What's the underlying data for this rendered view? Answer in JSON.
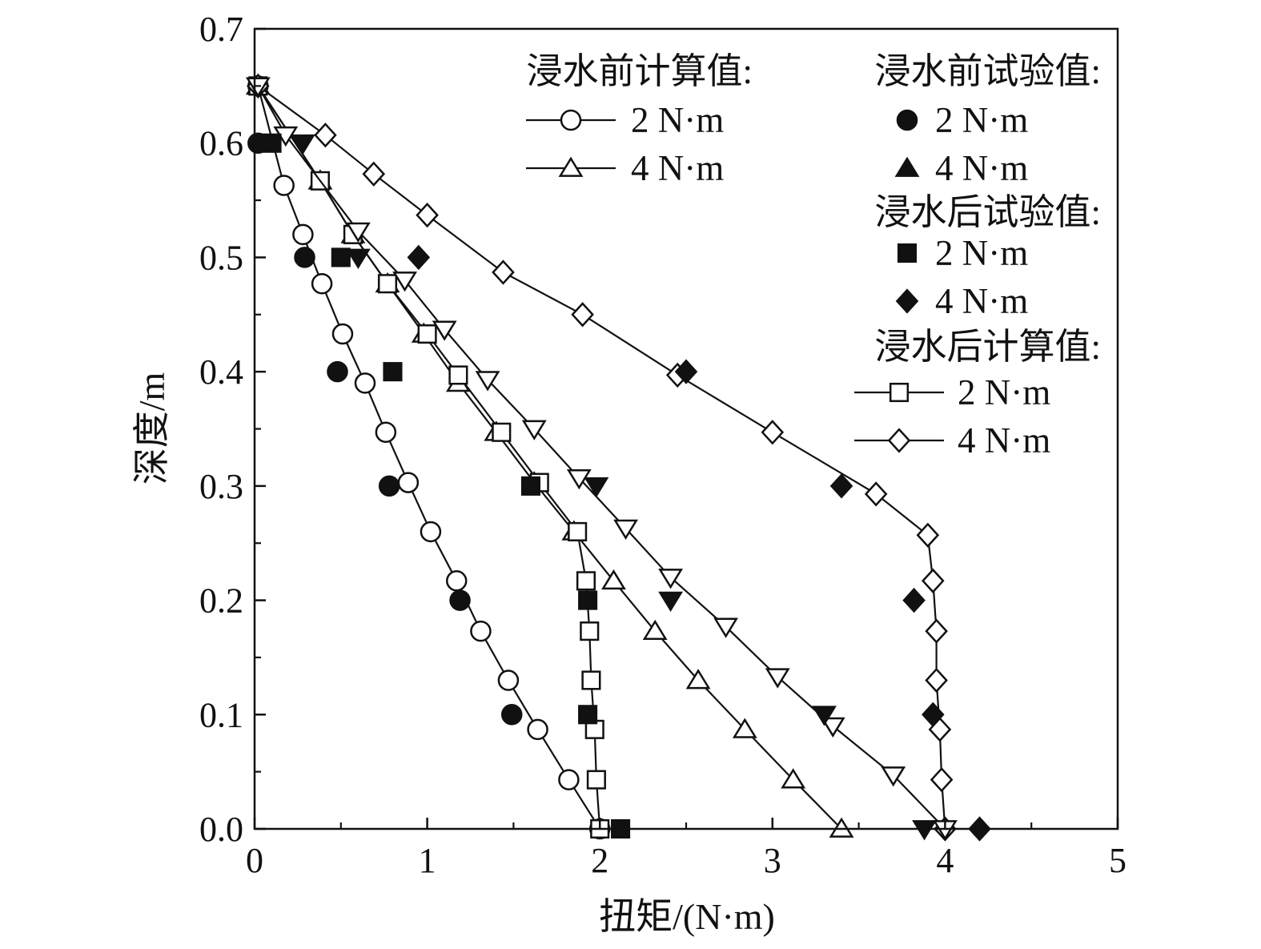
{
  "chart_data": {
    "type": "line",
    "xlabel": "扭矩/(N·m)",
    "ylabel": "深度/m",
    "xlim": [
      0,
      5
    ],
    "ylim": [
      0,
      0.7
    ],
    "xticks": [
      "0",
      "1",
      "2",
      "3",
      "4",
      "5"
    ],
    "yticks": [
      "0.0",
      "0.1",
      "0.2",
      "0.3",
      "0.4",
      "0.5",
      "0.6",
      "0.7"
    ],
    "grid": false,
    "legend_position": "top-right",
    "legend": {
      "groups": [
        {
          "title": "浸水前计算值:",
          "entries": [
            {
              "label": "2 N·m",
              "series": "before_calc_2"
            },
            {
              "label": "4 N·m",
              "series": "before_calc_4"
            }
          ]
        },
        {
          "title": "浸水前试验值:",
          "entries": [
            {
              "label": "2 N·m",
              "series": "before_test_2"
            },
            {
              "label": "4 N·m",
              "series": "before_test_4"
            }
          ]
        },
        {
          "title": "浸水后试验值:",
          "entries": [
            {
              "label": "2 N·m",
              "series": "after_test_2"
            },
            {
              "label": "4 N·m",
              "series": "after_test_4"
            }
          ]
        },
        {
          "title": "浸水后计算值:",
          "entries": [
            {
              "label": "2 N·m",
              "series": "after_calc_2"
            },
            {
              "label": "4 N·m",
              "series": "after_calc_4"
            }
          ]
        }
      ]
    },
    "series": [
      {
        "id": "before_calc_2",
        "marker": "circle-open",
        "line": true,
        "points": [
          [
            0.02,
            0.65
          ],
          [
            0.17,
            0.563
          ],
          [
            0.28,
            0.52
          ],
          [
            0.39,
            0.477
          ],
          [
            0.51,
            0.433
          ],
          [
            0.64,
            0.39
          ],
          [
            0.76,
            0.347
          ],
          [
            0.89,
            0.303
          ],
          [
            1.02,
            0.26
          ],
          [
            1.17,
            0.217
          ],
          [
            1.31,
            0.173
          ],
          [
            1.47,
            0.13
          ],
          [
            1.64,
            0.087
          ],
          [
            1.82,
            0.043
          ],
          [
            2.0,
            0.0
          ]
        ]
      },
      {
        "id": "before_calc_4",
        "marker": "triangle-open",
        "line": true,
        "points": [
          [
            0.02,
            0.65
          ],
          [
            0.38,
            0.567
          ],
          [
            0.57,
            0.52
          ],
          [
            0.77,
            0.477
          ],
          [
            0.98,
            0.433
          ],
          [
            1.18,
            0.39
          ],
          [
            1.4,
            0.347
          ],
          [
            1.62,
            0.303
          ],
          [
            1.85,
            0.26
          ],
          [
            2.08,
            0.217
          ],
          [
            2.32,
            0.173
          ],
          [
            2.57,
            0.13
          ],
          [
            2.84,
            0.087
          ],
          [
            3.12,
            0.043
          ],
          [
            3.4,
            0.0
          ]
        ]
      },
      {
        "id": "after_calc_2",
        "marker": "square-open",
        "line": true,
        "points": [
          [
            0.02,
            0.65
          ],
          [
            0.38,
            0.567
          ],
          [
            0.57,
            0.52
          ],
          [
            0.77,
            0.477
          ],
          [
            1.0,
            0.433
          ],
          [
            1.18,
            0.397
          ],
          [
            1.43,
            0.347
          ],
          [
            1.65,
            0.303
          ],
          [
            1.87,
            0.26
          ],
          [
            1.92,
            0.217
          ],
          [
            1.94,
            0.173
          ],
          [
            1.95,
            0.13
          ],
          [
            1.97,
            0.087
          ],
          [
            1.98,
            0.043
          ],
          [
            2.0,
            0.0
          ]
        ]
      },
      {
        "id": "after_calc_4",
        "marker": "diamond-open",
        "line": true,
        "points": [
          [
            0.02,
            0.65
          ],
          [
            0.41,
            0.607
          ],
          [
            0.69,
            0.573
          ],
          [
            1.0,
            0.537
          ],
          [
            1.44,
            0.487
          ],
          [
            1.9,
            0.45
          ],
          [
            2.45,
            0.397
          ],
          [
            3.0,
            0.347
          ],
          [
            3.6,
            0.293
          ],
          [
            3.9,
            0.257
          ],
          [
            3.93,
            0.217
          ],
          [
            3.95,
            0.173
          ],
          [
            3.95,
            0.13
          ],
          [
            3.97,
            0.087
          ],
          [
            3.98,
            0.043
          ],
          [
            4.0,
            0.0
          ]
        ]
      },
      {
        "id": "after_calc_4b",
        "marker": "triangle-down-open",
        "line": true,
        "points": [
          [
            0.02,
            0.65
          ],
          [
            0.18,
            0.607
          ],
          [
            0.6,
            0.523
          ],
          [
            0.87,
            0.48
          ],
          [
            1.1,
            0.437
          ],
          [
            1.35,
            0.393
          ],
          [
            1.62,
            0.35
          ],
          [
            1.88,
            0.307
          ],
          [
            2.15,
            0.263
          ],
          [
            2.41,
            0.22
          ],
          [
            2.73,
            0.177
          ],
          [
            3.03,
            0.133
          ],
          [
            3.35,
            0.09
          ],
          [
            3.7,
            0.047
          ],
          [
            4.0,
            0.0
          ]
        ]
      },
      {
        "id": "before_test_2",
        "marker": "circle-filled",
        "line": false,
        "points": [
          [
            0.02,
            0.6
          ],
          [
            0.29,
            0.5
          ],
          [
            0.48,
            0.4
          ],
          [
            0.78,
            0.3
          ],
          [
            1.19,
            0.2
          ],
          [
            1.49,
            0.1
          ]
        ]
      },
      {
        "id": "before_test_4",
        "marker": "triangle-filled",
        "line": false,
        "points": []
      },
      {
        "id": "after_test_2",
        "marker": "square-filled",
        "line": false,
        "points": [
          [
            0.1,
            0.6
          ],
          [
            0.5,
            0.5
          ],
          [
            0.8,
            0.4
          ],
          [
            1.6,
            0.3
          ],
          [
            1.93,
            0.2
          ],
          [
            1.93,
            0.1
          ],
          [
            2.12,
            0.0
          ]
        ]
      },
      {
        "id": "after_test_4",
        "marker": "diamond-filled",
        "line": false,
        "points": [
          [
            0.95,
            0.5
          ],
          [
            2.5,
            0.4
          ],
          [
            3.4,
            0.3
          ],
          [
            3.82,
            0.2
          ],
          [
            3.93,
            0.1
          ],
          [
            4.2,
            0.0
          ]
        ]
      },
      {
        "id": "before_test_4b",
        "marker": "triangle-down-filled",
        "line": false,
        "points": [
          [
            0.28,
            0.6
          ],
          [
            0.6,
            0.5
          ],
          [
            1.98,
            0.3
          ],
          [
            2.41,
            0.2
          ],
          [
            3.3,
            0.1
          ],
          [
            3.88,
            0.0
          ]
        ]
      }
    ]
  }
}
